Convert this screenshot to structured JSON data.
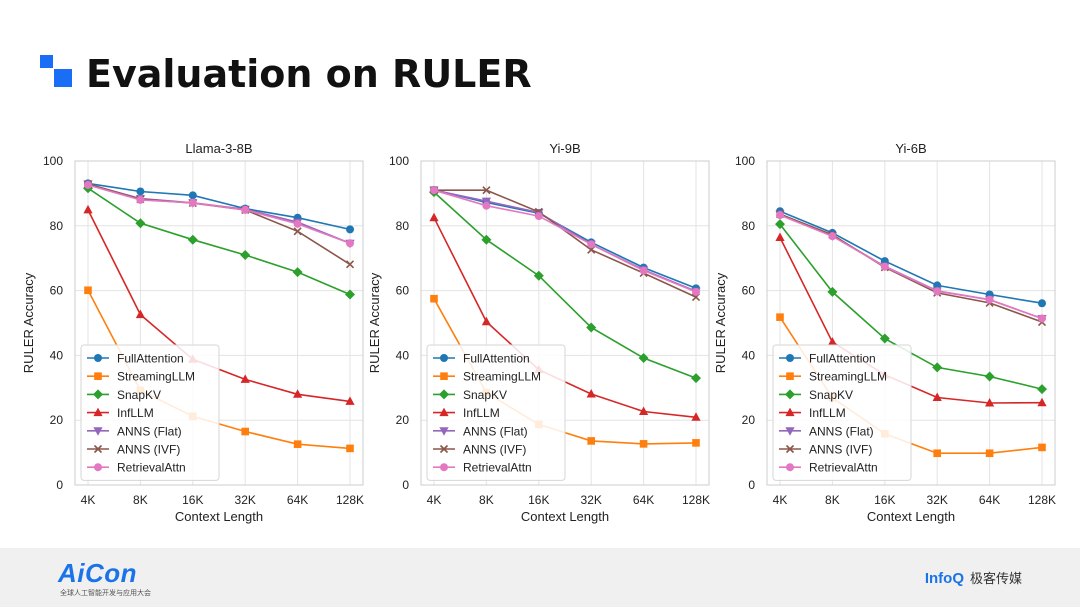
{
  "slide": {
    "title": "Evaluation on RULER"
  },
  "footer": {
    "left_logo": "AiCon",
    "left_subtitle": "全球人工智能开发与应用大会",
    "right_logo": "InfoQ",
    "right_text": "极客传媒"
  },
  "colors": {
    "FullAttention": "#1f77b4",
    "StreamingLLM": "#ff7f0e",
    "SnapKV": "#2ca02c",
    "InfLLM": "#d62728",
    "ANNS (Flat)": "#9467bd",
    "ANNS (IVF)": "#8c564b",
    "RetrievalAttn": "#e377c2",
    "accent": "#1a6ef5"
  },
  "chart_data": [
    {
      "type": "line",
      "title": "Llama-3-8B",
      "xlabel": "Context Length",
      "ylabel": "RULER Accuracy",
      "categories": [
        "4K",
        "8K",
        "16K",
        "32K",
        "64K",
        "128K"
      ],
      "ylim": [
        0,
        100
      ],
      "yticks": [
        0,
        20,
        40,
        60,
        80,
        100
      ],
      "grid": true,
      "legend": "lower-left",
      "series": [
        {
          "name": "FullAttention",
          "marker": "circle",
          "values": [
            93.1,
            90.6,
            89.4,
            85.3,
            82.5,
            78.9
          ]
        },
        {
          "name": "StreamingLLM",
          "marker": "square",
          "values": [
            60.1,
            29.2,
            21.2,
            16.5,
            12.6,
            11.3
          ]
        },
        {
          "name": "SnapKV",
          "marker": "diamond",
          "values": [
            91.6,
            80.8,
            75.7,
            71.0,
            65.7,
            58.8
          ]
        },
        {
          "name": "InfLLM",
          "marker": "triangle-up",
          "values": [
            84.9,
            52.6,
            38.8,
            32.6,
            28.0,
            25.8
          ]
        },
        {
          "name": "ANNS (Flat)",
          "marker": "triangle-down",
          "values": [
            92.9,
            88.4,
            87.1,
            85.1,
            81.1,
            74.6
          ]
        },
        {
          "name": "ANNS (IVF)",
          "marker": "x",
          "values": [
            92.9,
            88.2,
            87.0,
            84.9,
            78.3,
            68.1
          ]
        },
        {
          "name": "RetrievalAttn",
          "marker": "circle",
          "values": [
            92.6,
            88.0,
            87.1,
            84.9,
            80.6,
            74.6
          ]
        }
      ]
    },
    {
      "type": "line",
      "title": "Yi-9B",
      "xlabel": "Context Length",
      "ylabel": "RULER Accuracy",
      "categories": [
        "4K",
        "8K",
        "16K",
        "32K",
        "64K",
        "128K"
      ],
      "ylim": [
        0,
        100
      ],
      "yticks": [
        0,
        20,
        40,
        60,
        80,
        100
      ],
      "grid": true,
      "legend": "lower-left",
      "series": [
        {
          "name": "FullAttention",
          "marker": "circle",
          "values": [
            91.1,
            87.2,
            83.9,
            74.9,
            67.1,
            60.7
          ]
        },
        {
          "name": "StreamingLLM",
          "marker": "square",
          "values": [
            57.5,
            28.5,
            18.7,
            13.6,
            12.7,
            13.0
          ]
        },
        {
          "name": "SnapKV",
          "marker": "diamond",
          "values": [
            90.4,
            75.7,
            64.6,
            48.6,
            39.2,
            33.0
          ]
        },
        {
          "name": "InfLLM",
          "marker": "triangle-up",
          "values": [
            82.5,
            50.4,
            35.6,
            28.1,
            22.7,
            20.9
          ]
        },
        {
          "name": "ANNS (Flat)",
          "marker": "triangle-down",
          "values": [
            91.0,
            87.6,
            84.1,
            74.3,
            66.4,
            59.8
          ]
        },
        {
          "name": "ANNS (IVF)",
          "marker": "x",
          "values": [
            91.0,
            91.0,
            84.3,
            72.6,
            65.4,
            58.0
          ]
        },
        {
          "name": "RetrievalAttn",
          "marker": "circle",
          "values": [
            91.0,
            86.2,
            83.0,
            74.3,
            66.2,
            59.6
          ]
        }
      ]
    },
    {
      "type": "line",
      "title": "Yi-6B",
      "xlabel": "Context Length",
      "ylabel": "RULER Accuracy",
      "categories": [
        "4K",
        "8K",
        "16K",
        "32K",
        "64K",
        "128K"
      ],
      "ylim": [
        0,
        100
      ],
      "yticks": [
        0,
        20,
        40,
        60,
        80,
        100
      ],
      "grid": true,
      "legend": "lower-left",
      "series": [
        {
          "name": "FullAttention",
          "marker": "circle",
          "values": [
            84.5,
            77.8,
            69.1,
            61.6,
            58.8,
            56.1
          ]
        },
        {
          "name": "StreamingLLM",
          "marker": "square",
          "values": [
            51.8,
            26.9,
            15.8,
            9.8,
            9.8,
            11.6
          ]
        },
        {
          "name": "SnapKV",
          "marker": "diamond",
          "values": [
            80.5,
            59.6,
            45.2,
            36.3,
            33.5,
            29.6
          ]
        },
        {
          "name": "InfLLM",
          "marker": "triangle-up",
          "values": [
            76.4,
            44.1,
            34.0,
            27.0,
            25.3,
            25.4
          ]
        },
        {
          "name": "ANNS (Flat)",
          "marker": "triangle-down",
          "values": [
            83.6,
            76.9,
            67.5,
            59.9,
            57.2,
            51.4
          ]
        },
        {
          "name": "ANNS (IVF)",
          "marker": "x",
          "values": [
            83.6,
            77.2,
            67.2,
            59.3,
            56.2,
            50.3
          ]
        },
        {
          "name": "RetrievalAttn",
          "marker": "circle",
          "values": [
            83.3,
            76.8,
            67.4,
            59.8,
            57.2,
            51.4
          ]
        }
      ]
    }
  ]
}
